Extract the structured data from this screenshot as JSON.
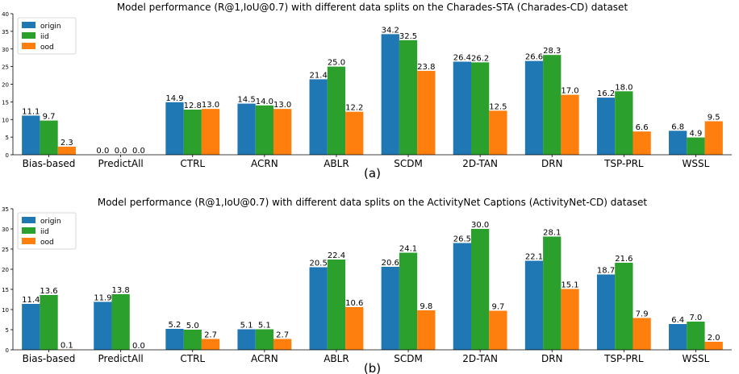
{
  "chart_data": [
    {
      "type": "bar",
      "title": "Model performance (R@1,IoU@0.7) with different data splits on the Charades-STA (Charades-CD) dataset",
      "caption": "(a)",
      "categories": [
        "Bias-based",
        "PredictAll",
        "CTRL",
        "ACRN",
        "ABLR",
        "SCDM",
        "2D-TAN",
        "DRN",
        "TSP-PRL",
        "WSSL"
      ],
      "series": [
        {
          "name": "origin",
          "color": "#1f77b4",
          "values": [
            11.1,
            0.0,
            14.9,
            14.5,
            21.4,
            34.2,
            26.4,
            26.6,
            16.2,
            6.8
          ]
        },
        {
          "name": "iid",
          "color": "#2ca02c",
          "values": [
            9.7,
            0.0,
            12.8,
            14.0,
            25.0,
            32.5,
            26.2,
            28.3,
            18.0,
            4.9
          ]
        },
        {
          "name": "ood",
          "color": "#ff7f0e",
          "values": [
            2.3,
            0.0,
            13.0,
            13.0,
            12.2,
            23.8,
            12.5,
            17.0,
            6.6,
            9.5
          ]
        }
      ],
      "ylim": [
        0,
        40
      ],
      "yticks": [
        0,
        5,
        10,
        15,
        20,
        25,
        30,
        35,
        40
      ],
      "legend": "top-left",
      "grid": false
    },
    {
      "type": "bar",
      "title": "Model performance (R@1,IoU@0.7) with different data splits on the ActivityNet Captions (ActivityNet-CD) dataset",
      "caption": "(b)",
      "categories": [
        "Bias-based",
        "PredictAll",
        "CTRL",
        "ACRN",
        "ABLR",
        "SCDM",
        "2D-TAN",
        "DRN",
        "TSP-PRL",
        "WSSL"
      ],
      "series": [
        {
          "name": "origin",
          "color": "#1f77b4",
          "values": [
            11.4,
            11.9,
            5.2,
            5.1,
            20.5,
            20.6,
            26.5,
            22.1,
            18.7,
            6.4
          ]
        },
        {
          "name": "iid",
          "color": "#2ca02c",
          "values": [
            13.6,
            13.8,
            5.0,
            5.1,
            22.4,
            24.1,
            30.0,
            28.1,
            21.6,
            7.0
          ]
        },
        {
          "name": "ood",
          "color": "#ff7f0e",
          "values": [
            0.1,
            0.0,
            2.7,
            2.7,
            10.6,
            9.8,
            9.7,
            15.1,
            7.9,
            2.0
          ]
        }
      ],
      "ylim": [
        0,
        35
      ],
      "yticks": [
        0,
        5,
        10,
        15,
        20,
        25,
        30,
        35
      ],
      "legend": "top-left",
      "grid": false
    }
  ]
}
